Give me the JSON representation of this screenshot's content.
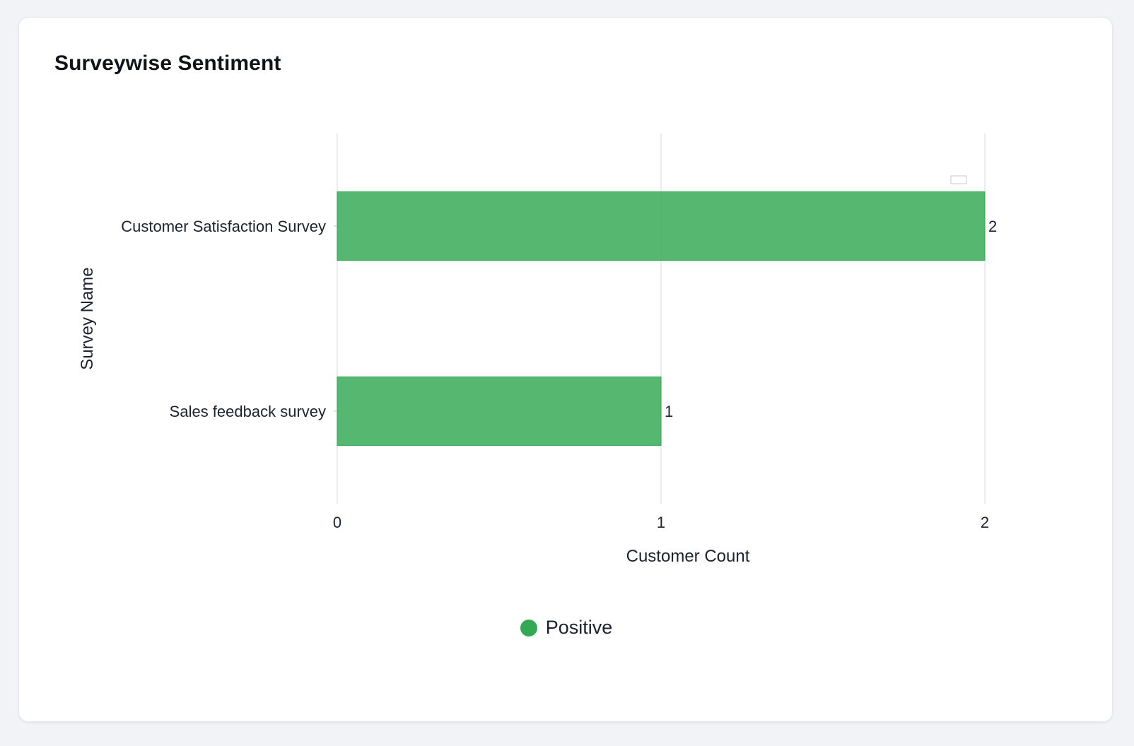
{
  "card": {
    "title": "Surveywise Sentiment"
  },
  "chart_data": {
    "type": "bar",
    "orientation": "horizontal",
    "title": "Surveywise Sentiment",
    "xlabel": "Customer Count",
    "ylabel": "Survey Name",
    "categories": [
      "Customer Satisfaction Survey",
      "Sales feedback survey"
    ],
    "xlim": [
      0,
      2
    ],
    "xticks": [
      "0",
      "1",
      "2"
    ],
    "grid": true,
    "legend_position": "bottom-center",
    "series": [
      {
        "name": "Positive",
        "color": "#34a853",
        "values": [
          2,
          1
        ],
        "data_labels": [
          "2",
          "1"
        ]
      }
    ]
  },
  "legend": {
    "items": [
      {
        "label": "Positive",
        "color": "#34a853"
      }
    ]
  }
}
